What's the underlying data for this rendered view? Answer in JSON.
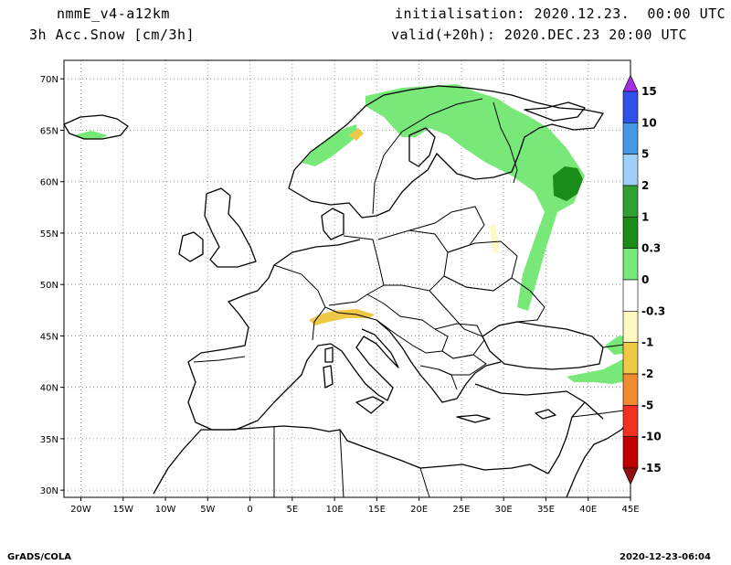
{
  "header": {
    "model": "nmmE_v4-a12km",
    "field": "3h Acc.Snow [cm/3h]",
    "initialisation": "initialisation: 2020.12.23.  00:00 UTC",
    "valid": "valid(+20h): 2020.DEC.23 20:00 UTC"
  },
  "map": {
    "lon_ticks": [
      "20W",
      "15W",
      "10W",
      "5W",
      "0",
      "5E",
      "10E",
      "15E",
      "20E",
      "25E",
      "30E",
      "35E",
      "40E",
      "45E"
    ],
    "lat_ticks": [
      "70N",
      "65N",
      "60N",
      "55N",
      "50N",
      "45N",
      "40N",
      "35N",
      "30N"
    ],
    "lon_range": [
      -22,
      45
    ],
    "lat_range": [
      29.3,
      71.8
    ],
    "grid": true
  },
  "legend": {
    "labels": [
      "15",
      "10",
      "5",
      "2",
      "1",
      "0.3",
      "0",
      "-0.3",
      "-1",
      "-2",
      "-5",
      "-10",
      "-15"
    ],
    "colors": [
      "#a030e0",
      "#3050e8",
      "#4898e8",
      "#a0d0f8",
      "#30a030",
      "#1a8c1a",
      "#78e878",
      "#ffffff",
      "#fff8c0",
      "#f0c848",
      "#f08c30",
      "#f03020",
      "#c00000",
      "#901010"
    ]
  },
  "footer": {
    "left": "GrADS/COLA",
    "right": "2020-12-23-06:04"
  }
}
